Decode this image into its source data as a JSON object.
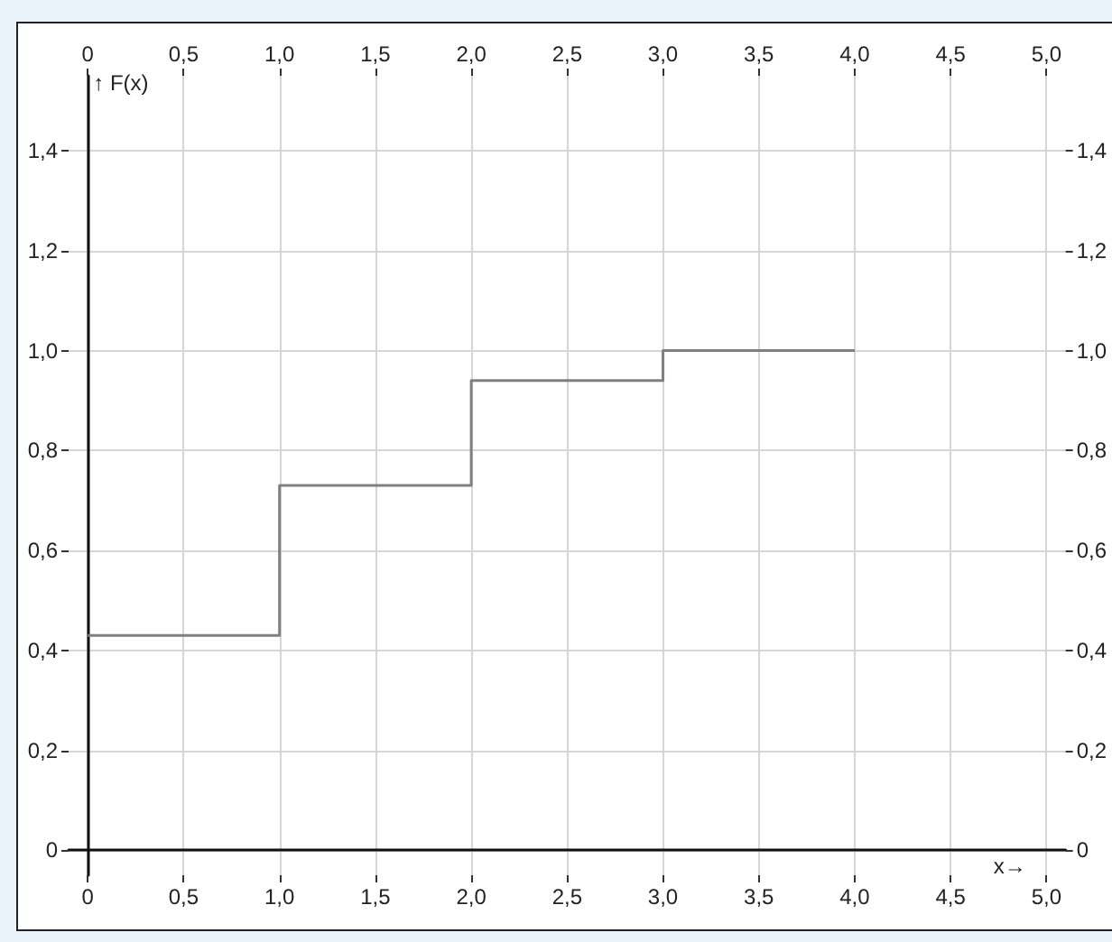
{
  "chart_data": {
    "type": "step",
    "xlabel": "x→",
    "ylabel": "↑ F(x)",
    "x": [
      0,
      1,
      2,
      3,
      4
    ],
    "series": [
      {
        "color": "#808080",
        "values": [
          0.43,
          0.73,
          0.94,
          1.0,
          1.0
        ]
      }
    ],
    "xlim": [
      -0.1,
      5.1
    ],
    "ylim": [
      -0.05,
      1.55
    ],
    "xticks": [
      0,
      {
        "value": 0.5,
        "label": "0,5"
      },
      {
        "value": 1,
        "label": "1,0"
      },
      {
        "value": 1.5,
        "label": "1,5"
      },
      {
        "value": 2,
        "label": "2,0"
      },
      {
        "value": 2.5,
        "label": "2,5"
      },
      {
        "value": 3,
        "label": "3,0"
      },
      {
        "value": 3.5,
        "label": "3,5"
      },
      {
        "value": 4,
        "label": "4,0"
      },
      {
        "value": 4.5,
        "label": "4,5"
      },
      {
        "value": 5,
        "label": "5,0"
      }
    ],
    "x2lim": [
      -0.1,
      5.1
    ],
    "x2ticks": [
      0,
      {
        "value": 0.5,
        "label": "0,5"
      },
      {
        "value": 1,
        "label": "1,0"
      },
      {
        "value": 1.5,
        "label": "1,5"
      },
      {
        "value": 2,
        "label": "2,0"
      },
      {
        "value": 2.5,
        "label": "2,5"
      },
      {
        "value": 3,
        "label": "3,0"
      },
      {
        "value": 3.5,
        "label": "3,5"
      },
      {
        "value": 4,
        "label": "4,0"
      },
      {
        "value": 4.5,
        "label": "4,5"
      },
      {
        "value": 5,
        "label": "5,0"
      }
    ],
    "yticks": [
      0,
      {
        "value": 0.2,
        "label": "0,2"
      },
      {
        "value": 0.4,
        "label": "0,4"
      },
      {
        "value": 0.6,
        "label": "0,6"
      },
      {
        "value": 0.8,
        "label": "0,8"
      },
      {
        "value": 1,
        "label": "1,0"
      },
      {
        "value": 1.2,
        "label": "1,2"
      },
      {
        "value": 1.4,
        "label": "1,4"
      }
    ],
    "y2lim": [
      -0.05,
      1.55
    ],
    "y2ticks": [
      0,
      {
        "value": 0.2,
        "label": "0,2"
      },
      {
        "value": 0.4,
        "label": "0,4"
      },
      {
        "value": 0.6,
        "label": "0,6"
      },
      {
        "value": 0.8,
        "label": "0,8"
      },
      {
        "value": 1,
        "label": "1,0"
      },
      {
        "value": 1.2,
        "label": "1,2"
      },
      {
        "value": 1.4,
        "label": "1,4"
      }
    ],
    "grid": true,
    "marker": "none",
    "line_style": "solid"
  }
}
